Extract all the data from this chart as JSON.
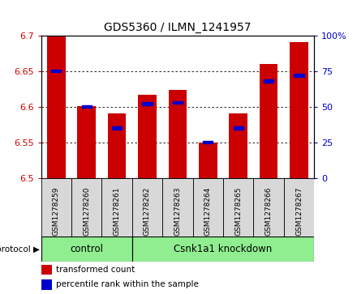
{
  "title": "GDS5360 / ILMN_1241957",
  "samples": [
    "GSM1278259",
    "GSM1278260",
    "GSM1278261",
    "GSM1278262",
    "GSM1278263",
    "GSM1278264",
    "GSM1278265",
    "GSM1278266",
    "GSM1278267"
  ],
  "transformed_count": [
    6.7,
    6.601,
    6.59,
    6.617,
    6.623,
    6.55,
    6.59,
    6.66,
    6.69
  ],
  "percentile_rank": [
    75,
    50,
    35,
    52,
    53,
    25,
    35,
    68,
    72
  ],
  "y_min": 6.5,
  "y_max": 6.7,
  "y_ticks": [
    6.5,
    6.55,
    6.6,
    6.65,
    6.7
  ],
  "right_y_ticks": [
    0,
    25,
    50,
    75,
    100
  ],
  "bar_color": "#cc0000",
  "blue_color": "#0000cc",
  "ctrl_count": 3,
  "kd_count": 6,
  "control_label": "control",
  "knockdown_label": "Csnk1a1 knockdown",
  "protocol_label": "protocol",
  "legend_red": "transformed count",
  "legend_blue": "percentile rank within the sample",
  "group_color": "#90ee90",
  "tick_label_color_left": "#cc0000",
  "tick_label_color_right": "#0000cc",
  "bar_width": 0.6,
  "baseline": 6.5,
  "gray_box_color": "#d8d8d8",
  "title_fontsize": 10,
  "tick_fontsize": 8,
  "sample_fontsize": 6.5
}
